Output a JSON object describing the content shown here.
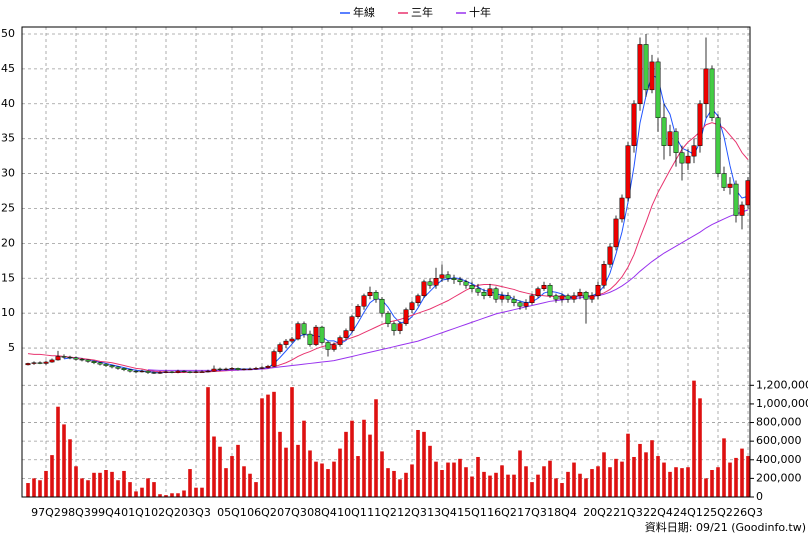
{
  "chart_data": {
    "type": "candlestick",
    "categories": [
      null,
      null,
      null,
      "97Q2",
      null,
      null,
      null,
      null,
      "98Q3",
      null,
      null,
      null,
      null,
      "99Q4",
      null,
      null,
      null,
      null,
      "01Q1",
      null,
      null,
      null,
      null,
      "02Q2",
      null,
      null,
      null,
      null,
      "03Q3",
      null,
      null,
      null,
      null,
      null,
      "05Q1",
      null,
      null,
      null,
      null,
      "06Q2",
      null,
      null,
      null,
      null,
      "07Q3",
      null,
      null,
      null,
      null,
      "08Q4",
      null,
      null,
      null,
      null,
      "10Q1",
      null,
      null,
      null,
      null,
      "11Q2",
      null,
      null,
      null,
      null,
      "12Q3",
      null,
      null,
      null,
      null,
      "13Q4",
      null,
      null,
      null,
      null,
      "15Q1",
      null,
      null,
      null,
      null,
      "16Q2",
      null,
      null,
      null,
      null,
      "17Q3",
      null,
      null,
      null,
      null,
      "18Q4",
      null,
      null,
      null,
      null,
      null,
      "20Q2",
      null,
      null,
      null,
      null,
      "21Q3",
      null,
      null,
      null,
      null,
      "22Q4",
      null,
      null,
      null,
      null,
      "24Q1",
      null,
      null,
      null,
      null,
      "25Q2",
      null,
      null,
      null,
      null,
      "26Q3"
    ],
    "candles": [
      [
        2.6,
        2.9,
        2.5,
        2.8
      ],
      [
        2.8,
        3.1,
        2.6,
        2.9
      ],
      [
        2.9,
        3.1,
        2.7,
        2.8
      ],
      [
        2.8,
        3.2,
        2.6,
        3.0
      ],
      [
        3.0,
        3.5,
        2.9,
        3.3
      ],
      [
        3.3,
        4.6,
        3.2,
        3.8
      ],
      [
        3.8,
        4.1,
        3.5,
        3.7
      ],
      [
        3.7,
        3.9,
        3.4,
        3.6
      ],
      [
        3.6,
        3.8,
        3.2,
        3.4
      ],
      [
        3.4,
        3.6,
        3.1,
        3.3
      ],
      [
        3.3,
        3.4,
        2.9,
        3.1
      ],
      [
        3.1,
        3.2,
        2.7,
        2.9
      ],
      [
        2.9,
        3.0,
        2.5,
        2.7
      ],
      [
        2.7,
        2.8,
        2.3,
        2.5
      ],
      [
        2.5,
        2.6,
        2.1,
        2.3
      ],
      [
        2.3,
        2.4,
        1.9,
        2.1
      ],
      [
        2.1,
        2.2,
        1.7,
        1.9
      ],
      [
        1.9,
        2.0,
        1.5,
        1.7
      ],
      [
        1.7,
        1.8,
        1.4,
        1.6
      ],
      [
        1.6,
        1.9,
        1.5,
        1.7
      ],
      [
        1.7,
        1.8,
        1.3,
        1.5
      ],
      [
        1.5,
        1.6,
        1.3,
        1.4
      ],
      [
        1.4,
        1.7,
        1.3,
        1.5
      ],
      [
        1.5,
        1.8,
        1.4,
        1.6
      ],
      [
        1.6,
        1.7,
        1.4,
        1.5
      ],
      [
        1.5,
        1.9,
        1.4,
        1.7
      ],
      [
        1.7,
        1.8,
        1.5,
        1.6
      ],
      [
        1.6,
        1.7,
        1.4,
        1.5
      ],
      [
        1.5,
        1.8,
        1.4,
        1.6
      ],
      [
        1.6,
        1.8,
        1.5,
        1.6
      ],
      [
        1.6,
        1.9,
        1.5,
        1.7
      ],
      [
        1.7,
        2.5,
        1.6,
        2.0
      ],
      [
        2.0,
        2.2,
        1.7,
        1.9
      ],
      [
        1.9,
        2.2,
        1.8,
        2.0
      ],
      [
        2.0,
        2.3,
        1.9,
        2.1
      ],
      [
        2.1,
        2.2,
        1.8,
        1.9
      ],
      [
        1.9,
        2.1,
        1.8,
        2.0
      ],
      [
        2.0,
        2.2,
        1.9,
        2.0
      ],
      [
        2.0,
        2.3,
        1.9,
        2.1
      ],
      [
        2.1,
        2.4,
        2.0,
        2.2
      ],
      [
        2.2,
        2.6,
        2.1,
        2.4
      ],
      [
        2.4,
        4.8,
        2.3,
        4.5
      ],
      [
        4.5,
        5.8,
        4.2,
        5.5
      ],
      [
        5.5,
        6.3,
        5.0,
        6.0
      ],
      [
        6.0,
        6.6,
        5.7,
        6.3
      ],
      [
        6.3,
        8.8,
        6.1,
        8.5
      ],
      [
        8.5,
        8.8,
        6.5,
        7.0
      ],
      [
        7.0,
        7.5,
        5.2,
        5.5
      ],
      [
        5.5,
        8.3,
        5.3,
        8.0
      ],
      [
        8.0,
        8.2,
        5.5,
        5.8
      ],
      [
        5.8,
        6.0,
        3.8,
        4.8
      ],
      [
        4.8,
        5.8,
        4.5,
        5.5
      ],
      [
        5.5,
        6.8,
        5.2,
        6.5
      ],
      [
        6.5,
        7.8,
        6.2,
        7.5
      ],
      [
        7.5,
        9.8,
        7.2,
        9.5
      ],
      [
        9.5,
        11.3,
        9.2,
        11.0
      ],
      [
        11.0,
        12.8,
        10.5,
        12.5
      ],
      [
        12.5,
        13.8,
        12.0,
        13.0
      ],
      [
        13.0,
        13.3,
        11.5,
        12.0
      ],
      [
        12.0,
        12.3,
        9.5,
        10.0
      ],
      [
        10.0,
        10.3,
        8.0,
        8.5
      ],
      [
        8.5,
        8.8,
        6.8,
        7.5
      ],
      [
        7.5,
        8.8,
        7.0,
        8.5
      ],
      [
        8.5,
        10.8,
        8.2,
        10.5
      ],
      [
        10.5,
        11.8,
        10.0,
        11.5
      ],
      [
        11.5,
        12.8,
        11.0,
        12.5
      ],
      [
        12.5,
        14.8,
        12.2,
        14.5
      ],
      [
        14.5,
        15.0,
        13.5,
        14.0
      ],
      [
        14.0,
        16.5,
        13.5,
        15.0
      ],
      [
        15.0,
        17.0,
        14.5,
        15.5
      ],
      [
        15.5,
        16.0,
        14.5,
        15.0
      ],
      [
        15.0,
        15.5,
        14.2,
        14.8
      ],
      [
        14.8,
        15.2,
        14.0,
        14.5
      ],
      [
        14.5,
        14.8,
        13.5,
        14.0
      ],
      [
        14.0,
        14.5,
        13.0,
        13.5
      ],
      [
        13.5,
        14.2,
        12.5,
        13.0
      ],
      [
        13.0,
        13.5,
        12.0,
        12.5
      ],
      [
        12.5,
        14.2,
        12.2,
        13.5
      ],
      [
        13.5,
        13.8,
        11.5,
        12.0
      ],
      [
        12.0,
        13.0,
        11.5,
        12.5
      ],
      [
        12.5,
        13.0,
        11.5,
        12.0
      ],
      [
        12.0,
        12.5,
        11.0,
        11.5
      ],
      [
        11.5,
        11.8,
        10.5,
        11.0
      ],
      [
        11.0,
        12.0,
        10.5,
        11.5
      ],
      [
        11.5,
        12.8,
        11.2,
        12.5
      ],
      [
        12.5,
        13.8,
        12.2,
        13.5
      ],
      [
        13.5,
        14.5,
        13.2,
        14.0
      ],
      [
        14.0,
        14.3,
        12.2,
        12.5
      ],
      [
        12.5,
        12.8,
        11.5,
        12.0
      ],
      [
        12.0,
        12.8,
        11.5,
        12.5
      ],
      [
        12.5,
        12.8,
        11.5,
        12.0
      ],
      [
        12.0,
        13.0,
        11.5,
        12.5
      ],
      [
        12.5,
        13.5,
        12.0,
        13.0
      ],
      [
        13.0,
        13.2,
        8.5,
        12.0
      ],
      [
        12.0,
        13.0,
        11.5,
        12.5
      ],
      [
        12.5,
        14.5,
        12.0,
        14.0
      ],
      [
        14.0,
        17.5,
        13.5,
        17.0
      ],
      [
        17.0,
        20.0,
        16.5,
        19.5
      ],
      [
        19.5,
        24.0,
        19.0,
        23.5
      ],
      [
        23.5,
        27.0,
        23.0,
        26.5
      ],
      [
        26.5,
        34.5,
        26.0,
        34.0
      ],
      [
        34.0,
        40.5,
        33.0,
        40.0
      ],
      [
        40.0,
        49.5,
        39.0,
        48.5
      ],
      [
        48.5,
        50.0,
        41.0,
        42.0
      ],
      [
        42.0,
        47.0,
        41.5,
        46.0
      ],
      [
        46.0,
        46.5,
        36.0,
        38.0
      ],
      [
        38.0,
        40.0,
        32.0,
        34.0
      ],
      [
        34.0,
        37.0,
        32.5,
        36.0
      ],
      [
        36.0,
        36.5,
        31.0,
        33.0
      ],
      [
        33.0,
        34.0,
        29.0,
        31.5
      ],
      [
        31.5,
        33.5,
        30.5,
        32.5
      ],
      [
        32.5,
        35.0,
        31.5,
        34.0
      ],
      [
        34.0,
        40.5,
        33.0,
        40.0
      ],
      [
        40.0,
        49.5,
        38.0,
        45.0
      ],
      [
        45.0,
        45.5,
        37.5,
        38.0
      ],
      [
        38.0,
        38.5,
        29.5,
        30.0
      ],
      [
        30.0,
        31.0,
        27.5,
        28.0
      ],
      [
        28.0,
        29.5,
        27.0,
        28.5
      ],
      [
        28.5,
        29.0,
        23.0,
        24.0
      ],
      [
        24.0,
        26.0,
        22.0,
        25.5
      ],
      [
        25.5,
        29.5,
        25.0,
        29.0
      ]
    ],
    "up_color": "#ee0000",
    "down_color": "#44cc44",
    "series": [
      {
        "name": "年線",
        "color": "#2255ff",
        "values": [
          null,
          null,
          null,
          null,
          null,
          null,
          3.45,
          3.6,
          3.63,
          3.5,
          3.35,
          3.18,
          3.0,
          2.8,
          2.6,
          2.4,
          2.2,
          2.0,
          1.83,
          1.73,
          1.63,
          1.55,
          1.53,
          1.5,
          1.5,
          1.58,
          1.6,
          1.58,
          1.6,
          1.58,
          1.6,
          1.73,
          1.8,
          1.9,
          2.0,
          1.98,
          2.0,
          2.0,
          2.0,
          2.08,
          2.18,
          2.8,
          3.65,
          4.6,
          5.58,
          6.58,
          6.95,
          6.83,
          6.75,
          6.58,
          6.03,
          6.03,
          5.65,
          6.08,
          7.25,
          8.63,
          10.13,
          11.5,
          12.13,
          11.88,
          10.88,
          9.5,
          8.63,
          8.75,
          9.5,
          10.75,
          12.25,
          13.13,
          14.0,
          14.75,
          14.88,
          15.08,
          14.95,
          14.58,
          14.2,
          13.75,
          13.25,
          13.13,
          12.75,
          12.63,
          12.5,
          12.0,
          11.75,
          11.5,
          11.63,
          12.13,
          12.88,
          13.13,
          13.0,
          12.75,
          12.25,
          12.25,
          12.5,
          12.38,
          12.5,
          12.88,
          13.88,
          15.75,
          18.5,
          21.63,
          25.88,
          31.0,
          37.25,
          41.13,
          44.13,
          43.63,
          40.0,
          38.5,
          35.25,
          33.63,
          33.25,
          32.75,
          34.5,
          37.88,
          39.25,
          38.25,
          35.25,
          31.13,
          27.63,
          26.5,
          26.75
        ]
      },
      {
        "name": "三年",
        "color": "#e8336e",
        "values": [
          4.2,
          4.1,
          4.1,
          4.0,
          3.9,
          3.9,
          3.8,
          3.7,
          3.6,
          3.5,
          3.4,
          3.3,
          3.1,
          3.0,
          2.9,
          2.7,
          2.5,
          2.3,
          2.1,
          2.0,
          1.8,
          1.7,
          1.6,
          1.6,
          1.5,
          1.5,
          1.5,
          1.55,
          1.55,
          1.6,
          1.6,
          1.65,
          1.7,
          1.75,
          1.8,
          1.85,
          1.9,
          1.95,
          2.0,
          2.0,
          2.05,
          2.3,
          2.6,
          2.9,
          3.3,
          3.8,
          4.2,
          4.5,
          4.9,
          5.2,
          5.4,
          5.6,
          5.9,
          6.2,
          6.5,
          6.8,
          7.2,
          7.6,
          8.0,
          8.4,
          8.7,
          8.9,
          9.1,
          9.4,
          9.7,
          10.0,
          10.3,
          10.6,
          11.0,
          11.4,
          11.8,
          12.3,
          12.8,
          13.3,
          13.7,
          14.0,
          14.1,
          14.1,
          14.0,
          13.8,
          13.6,
          13.4,
          13.1,
          12.9,
          12.7,
          12.6,
          12.5,
          12.4,
          12.4,
          12.4,
          12.4,
          12.4,
          12.5,
          12.5,
          12.5,
          12.6,
          12.9,
          13.4,
          14.2,
          15.2,
          16.6,
          18.4,
          20.8,
          23.0,
          25.4,
          27.3,
          28.9,
          30.5,
          32.0,
          33.5,
          34.5,
          35.2,
          36.0,
          37.0,
          37.3,
          37.0,
          36.5,
          35.5,
          34.5,
          33.0,
          32.0
        ]
      },
      {
        "name": "十年",
        "color": "#9933ee",
        "values": [
          null,
          null,
          null,
          null,
          null,
          null,
          null,
          null,
          null,
          null,
          null,
          null,
          null,
          null,
          null,
          null,
          null,
          null,
          null,
          null,
          1.9,
          1.85,
          1.8,
          1.8,
          1.8,
          1.8,
          1.8,
          1.8,
          1.8,
          1.8,
          1.8,
          1.8,
          1.8,
          1.8,
          1.85,
          1.85,
          1.9,
          1.9,
          1.95,
          2.0,
          2.1,
          2.2,
          2.3,
          2.4,
          2.5,
          2.6,
          2.7,
          2.8,
          2.9,
          3.0,
          3.1,
          3.2,
          3.4,
          3.6,
          3.8,
          4.0,
          4.2,
          4.4,
          4.6,
          4.8,
          5.0,
          5.2,
          5.4,
          5.6,
          5.8,
          6.0,
          6.3,
          6.6,
          6.9,
          7.2,
          7.5,
          7.8,
          8.1,
          8.4,
          8.7,
          9.0,
          9.3,
          9.6,
          9.9,
          10.1,
          10.3,
          10.5,
          10.7,
          10.9,
          11.1,
          11.3,
          11.5,
          11.7,
          11.8,
          11.9,
          12.0,
          12.1,
          12.2,
          12.3,
          12.4,
          12.5,
          12.7,
          13.0,
          13.4,
          13.9,
          14.5,
          15.2,
          16.0,
          16.7,
          17.4,
          18.0,
          18.6,
          19.1,
          19.6,
          20.1,
          20.6,
          21.1,
          21.6,
          22.2,
          22.7,
          23.1,
          23.5,
          23.9,
          24.2,
          24.5,
          24.8
        ]
      }
    ],
    "ylim": [
      1,
      51
    ],
    "yticks": [
      5,
      10,
      15,
      20,
      25,
      30,
      35,
      40,
      45,
      50
    ],
    "grid": true,
    "volume": {
      "color": "#dd1111",
      "ylim": [
        0,
        1300000
      ],
      "yticks": [
        0,
        {
          "value": 200000,
          "label": "200,000"
        },
        {
          "value": 400000,
          "label": "400,000"
        },
        {
          "value": 600000,
          "label": "600,000"
        },
        {
          "value": 800000,
          "label": "800,000"
        },
        {
          "value": 1000000,
          "label": "1,000,000"
        },
        {
          "value": 1200000,
          "label": "1,200,000"
        }
      ],
      "values": [
        150000,
        200000,
        180000,
        280000,
        450000,
        970000,
        780000,
        620000,
        330000,
        200000,
        180000,
        260000,
        260000,
        290000,
        270000,
        180000,
        280000,
        160000,
        60000,
        100000,
        200000,
        160000,
        30000,
        20000,
        40000,
        40000,
        70000,
        300000,
        100000,
        100000,
        1180000,
        650000,
        540000,
        310000,
        440000,
        560000,
        330000,
        250000,
        160000,
        1060000,
        1100000,
        1130000,
        700000,
        530000,
        1180000,
        560000,
        820000,
        500000,
        380000,
        360000,
        300000,
        380000,
        520000,
        700000,
        820000,
        440000,
        830000,
        670000,
        1050000,
        490000,
        310000,
        280000,
        190000,
        260000,
        350000,
        720000,
        700000,
        550000,
        380000,
        290000,
        370000,
        370000,
        410000,
        320000,
        220000,
        430000,
        270000,
        230000,
        260000,
        340000,
        240000,
        240000,
        500000,
        330000,
        160000,
        240000,
        330000,
        390000,
        200000,
        150000,
        270000,
        370000,
        250000,
        200000,
        300000,
        330000,
        480000,
        320000,
        410000,
        380000,
        680000,
        430000,
        570000,
        480000,
        610000,
        440000,
        370000,
        270000,
        320000,
        310000,
        320000,
        1250000,
        1060000,
        200000,
        290000,
        320000,
        630000,
        370000,
        420000,
        520000,
        440000
      ]
    },
    "footer": "資料日期: 09/21  (Goodinfo.tw)"
  }
}
